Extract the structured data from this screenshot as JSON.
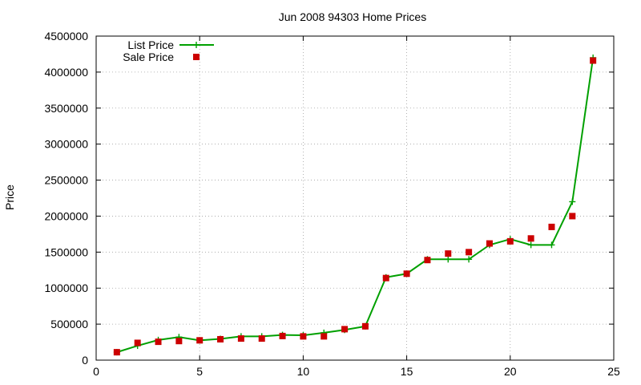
{
  "chart_data": {
    "type": "line",
    "title": "Jun 2008 94303 Home Prices",
    "xlabel": "",
    "ylabel": "Price",
    "xlim": [
      0,
      25
    ],
    "ylim": [
      0,
      4500000
    ],
    "x_ticks": [
      0,
      5,
      10,
      15,
      20,
      25
    ],
    "y_ticks": [
      0,
      500000,
      1000000,
      1500000,
      2000000,
      2500000,
      3000000,
      3500000,
      4000000,
      4500000
    ],
    "grid": true,
    "legend_position": "top-left",
    "series": [
      {
        "name": "List Price",
        "style": "line+points",
        "marker": "plus",
        "color": "#00a000",
        "x": [
          1,
          2,
          3,
          4,
          5,
          6,
          7,
          8,
          9,
          10,
          11,
          12,
          13,
          14,
          15,
          16,
          17,
          18,
          19,
          20,
          21,
          22,
          23,
          24
        ],
        "y": [
          110000,
          200000,
          280000,
          320000,
          275000,
          295000,
          330000,
          330000,
          350000,
          345000,
          380000,
          420000,
          470000,
          1150000,
          1200000,
          1400000,
          1400000,
          1400000,
          1600000,
          1680000,
          1600000,
          1600000,
          2200000,
          4200000
        ]
      },
      {
        "name": "Sale Price",
        "style": "points",
        "marker": "square",
        "color": "#cc0000",
        "x": [
          1,
          2,
          3,
          4,
          5,
          6,
          7,
          8,
          9,
          10,
          11,
          12,
          13,
          14,
          15,
          16,
          17,
          18,
          19,
          20,
          21,
          22,
          23,
          24
        ],
        "y": [
          110000,
          240000,
          255000,
          265000,
          275000,
          290000,
          300000,
          300000,
          335000,
          330000,
          330000,
          430000,
          470000,
          1140000,
          1200000,
          1390000,
          1480000,
          1500000,
          1620000,
          1650000,
          1690000,
          1850000,
          2000000,
          4160000
        ]
      }
    ]
  }
}
